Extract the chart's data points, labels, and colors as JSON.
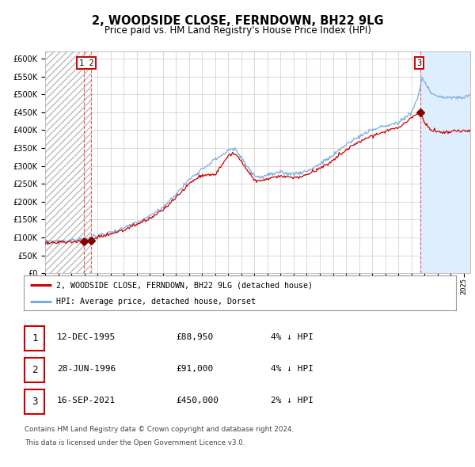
{
  "title": "2, WOODSIDE CLOSE, FERNDOWN, BH22 9LG",
  "subtitle": "Price paid vs. HM Land Registry's House Price Index (HPI)",
  "legend_line1": "2, WOODSIDE CLOSE, FERNDOWN, BH22 9LG (detached house)",
  "legend_line2": "HPI: Average price, detached house, Dorset",
  "purchases": [
    {
      "label": "1",
      "date_num": 1995.95,
      "price": 88950
    },
    {
      "label": "2",
      "date_num": 1996.49,
      "price": 91000
    },
    {
      "label": "3",
      "date_num": 2021.71,
      "price": 450000
    }
  ],
  "table_rows": [
    {
      "num": "1",
      "date": "12-DEC-1995",
      "price": "£88,950",
      "hpi": "4% ↓ HPI"
    },
    {
      "num": "2",
      "date": "28-JUN-1996",
      "price": "£91,000",
      "hpi": "4% ↓ HPI"
    },
    {
      "num": "3",
      "date": "16-SEP-2021",
      "price": "£450,000",
      "hpi": "2% ↓ HPI"
    }
  ],
  "footer1": "Contains HM Land Registry data © Crown copyright and database right 2024.",
  "footer2": "This data is licensed under the Open Government Licence v3.0.",
  "hatch_region_end": 1996.49,
  "highlight_region_start": 2021.71,
  "highlight_region_end": 2025.5,
  "ylim": [
    0,
    620000
  ],
  "xlim_start": 1993.0,
  "xlim_end": 2025.5,
  "red_line_color": "#cc0000",
  "blue_line_color": "#7aaddd",
  "highlight_color": "#ddeeff",
  "vline_color_red": "#dd4444",
  "vline_color_blue": "#aabbdd",
  "grid_color": "#cccccc",
  "bg_color": "#ffffff",
  "purchase_marker_color": "#880000",
  "hpi_waypoints_x": [
    1993,
    1994,
    1995,
    1996,
    1997,
    1998,
    1999,
    2000,
    2001,
    2002,
    2003,
    2004,
    2005,
    2006,
    2007,
    2007.5,
    2008,
    2009,
    2009.5,
    2010,
    2011,
    2012,
    2013,
    2014,
    2015,
    2016,
    2017,
    2018,
    2019,
    2020,
    2021,
    2021.5,
    2021.8,
    2022.1,
    2022.5,
    2023.0,
    2023.5,
    2024.0,
    2025.0,
    2025.5
  ],
  "hpi_waypoints_y": [
    88000,
    90000,
    91500,
    95000,
    104000,
    114000,
    126000,
    140000,
    158000,
    185000,
    220000,
    262000,
    292000,
    318000,
    342000,
    348000,
    322000,
    272000,
    268000,
    275000,
    280000,
    278000,
    285000,
    305000,
    328000,
    360000,
    382000,
    400000,
    412000,
    420000,
    450000,
    490000,
    545000,
    530000,
    505000,
    495000,
    490000,
    490000,
    492000,
    495000
  ],
  "red_waypoints_x": [
    1993,
    1994,
    1995,
    1995.95,
    1996.49,
    1997,
    1998,
    1999,
    2000,
    2001,
    2002,
    2003,
    2004,
    2005,
    2006,
    2007,
    2007.5,
    2008,
    2009,
    2009.5,
    2010,
    2011,
    2012,
    2013,
    2014,
    2015,
    2016,
    2017,
    2018,
    2019,
    2020,
    2021,
    2021.71,
    2022.0,
    2022.5,
    2023.0,
    2023.5,
    2024.0,
    2025.0,
    2025.5
  ],
  "red_waypoints_y": [
    84000,
    86000,
    88000,
    88950,
    91000,
    100000,
    110000,
    121000,
    135000,
    152000,
    177000,
    210000,
    250000,
    275000,
    275000,
    330000,
    335000,
    310000,
    260000,
    258000,
    264000,
    270000,
    267000,
    274000,
    293000,
    315000,
    345000,
    367000,
    385000,
    397000,
    406000,
    435000,
    450000,
    420000,
    400000,
    395000,
    393000,
    395000,
    397000,
    400000
  ],
  "vlines": [
    1995.95,
    1996.49,
    2021.71
  ]
}
